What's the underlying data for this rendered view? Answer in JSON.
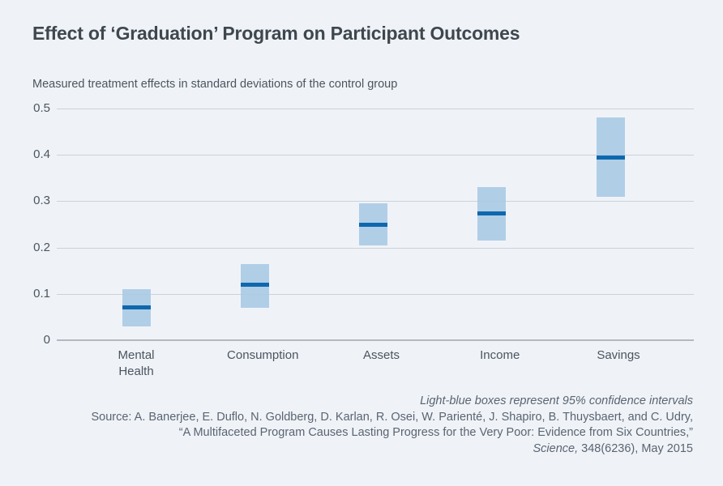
{
  "chart_data": {
    "type": "bar",
    "subtype": "confidence-interval-range-boxes",
    "title": "Effect of ‘Graduation’ Program on Participant Outcomes",
    "subtitle": "Measured treatment effects in standard deviations of the control group",
    "categories": [
      "Mental Health",
      "Consumption",
      "Assets",
      "Income",
      "Savings"
    ],
    "series": [
      {
        "name": "point_estimate",
        "values": [
          0.07,
          0.12,
          0.25,
          0.273,
          0.395
        ]
      },
      {
        "name": "ci_low",
        "values": [
          0.03,
          0.07,
          0.205,
          0.215,
          0.31
        ]
      },
      {
        "name": "ci_high",
        "values": [
          0.11,
          0.165,
          0.295,
          0.33,
          0.48
        ]
      }
    ],
    "xlabel": "",
    "ylabel": "",
    "ylim": [
      0,
      0.5
    ],
    "yticks": [
      0,
      0.1,
      0.2,
      0.3,
      0.4,
      0.5
    ],
    "grid": "horizontal",
    "legend": "none",
    "colors": {
      "ci_box_fill": "#a9c8e4",
      "estimate_line": "#0f68ad",
      "gridline": "#cdd2d8",
      "zero_line": "#b3b9c0",
      "background": "#eff3f8"
    }
  },
  "footer": {
    "note": "Light-blue boxes represent 95% confidence intervals",
    "source_line1": "Source: A. Banerjee, E. Duflo, N. Goldberg, D. Karlan, R. Osei, W. Parienté, J. Shapiro, B. Thuysbaert, and C. Udry,",
    "source_line2": "“A Multifaceted Program Causes Lasting Progress for the Very Poor: Evidence from Six Countries,”",
    "journal_italic": "Science,",
    "journal_rest": " 348(6236), May 2015"
  }
}
